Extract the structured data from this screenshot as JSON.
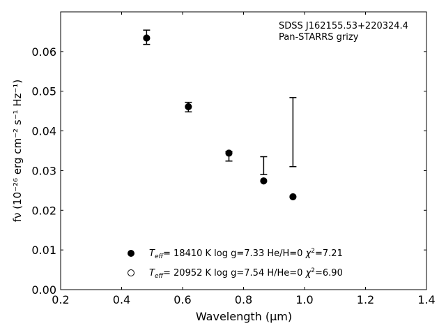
{
  "chart_data": {
    "type": "scatter",
    "annotation_lines": [
      "SDSS J162155.53+220324.4",
      "Pan-STARRS grizy"
    ],
    "xlabel": "Wavelength (μm)",
    "ylabel": "fν (10⁻²⁶ erg cm⁻² s⁻¹ Hz⁻¹)",
    "xlim": [
      0.2,
      1.4
    ],
    "ylim": [
      0.0,
      0.07
    ],
    "x_ticks": [
      0.2,
      0.4,
      0.6,
      0.8,
      1.0,
      1.2,
      1.4
    ],
    "x_tick_labels": [
      "0.2",
      "0.4",
      "0.6",
      "0.8",
      "1.0",
      "1.2",
      "1.4"
    ],
    "y_ticks": [
      0.0,
      0.01,
      0.02,
      0.03,
      0.04,
      0.05,
      0.06
    ],
    "y_tick_labels": [
      "0.00",
      "0.01",
      "0.02",
      "0.03",
      "0.04",
      "0.05",
      "0.06"
    ],
    "grid": false,
    "legend_position": "bottom-center",
    "observed": [
      {
        "x": 0.482,
        "y_low": 0.0618,
        "y_high": 0.0654
      },
      {
        "x": 0.619,
        "y_low": 0.0448,
        "y_high": 0.0472
      },
      {
        "x": 0.752,
        "y_low": 0.0324,
        "y_high": 0.0348
      },
      {
        "x": 0.866,
        "y_low": 0.029,
        "y_high": 0.0335
      },
      {
        "x": 0.962,
        "y_low": 0.031,
        "y_high": 0.0484
      }
    ],
    "series": [
      {
        "marker": "filled-circle",
        "legend": "T_eff= 18410 K  log g=7.33  He/H=0  χ²=7.21",
        "x": [
          0.482,
          0.619,
          0.752,
          0.866,
          0.962
        ],
        "values": [
          0.0634,
          0.0461,
          0.0344,
          0.0274,
          0.0234
        ]
      },
      {
        "marker": "open-circle",
        "legend": "T_eff= 20952 K  log g=7.54  H/He=0  χ²=6.90",
        "x": [
          0.482,
          0.619,
          0.752,
          0.866,
          0.962
        ],
        "values": [
          0.0634,
          0.0461,
          0.0344,
          0.0274,
          0.0234
        ]
      }
    ],
    "legend_entries": [
      {
        "t": "T",
        "sub": "eff",
        "rest": "= 18410 K  log g=7.33  He/H=0  ",
        "chi": "χ",
        "sup": "2",
        "tail": "=7.21",
        "marker": "filled-circle"
      },
      {
        "t": "T",
        "sub": "eff",
        "rest": "= 20952 K  log g=7.54  H/He=0  ",
        "chi": "χ",
        "sup": "2",
        "tail": "=6.90",
        "marker": "open-circle"
      }
    ],
    "colors": {
      "marker": "#000000",
      "axis": "#000000",
      "background": "#ffffff"
    }
  }
}
